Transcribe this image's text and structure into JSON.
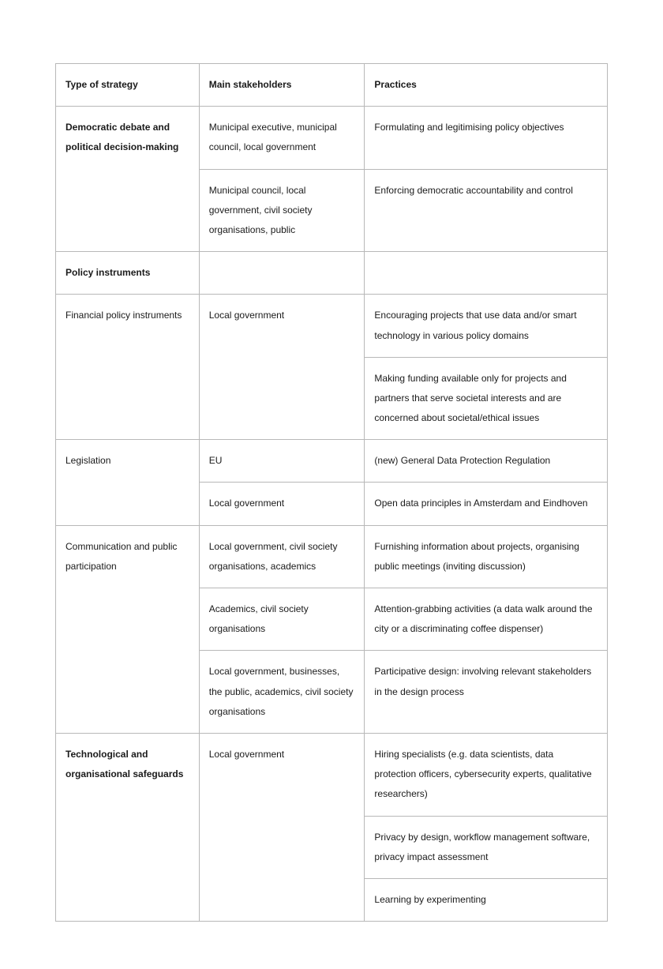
{
  "table": {
    "border_color": "#b8b8b8",
    "background_color": "#ffffff",
    "text_color": "#1a1a1a",
    "font_size_pt": 9,
    "line_height": 2.1,
    "column_widths_pct": [
      26,
      30,
      44
    ],
    "headers": {
      "col1": "Type of strategy",
      "col2": "Main stakeholders",
      "col3": "Practices"
    },
    "section1": {
      "title": "Democratic debate and political decision-making",
      "rows": [
        {
          "stakeholders": "Municipal executive, municipal council, local government",
          "practices": "Formulating and legitimising policy objectives"
        },
        {
          "stakeholders": "Municipal council, local government, civil society organisations, public",
          "practices": "Enforcing democratic accountability and control"
        }
      ]
    },
    "section2": {
      "title": "Policy instruments",
      "sub1": {
        "name": "Financial policy instruments",
        "stakeholders": "Local government",
        "practices": [
          "Encouraging projects that use data and/or smart technology in various policy domains",
          "Making funding available only for projects and partners that serve societal interests and are concerned about societal/ethical issues"
        ]
      },
      "sub2": {
        "name": "Legislation",
        "rows": [
          {
            "stakeholders": "EU",
            "practices": " (new) General Data Protection Regulation"
          },
          {
            "stakeholders": "Local government",
            "practices": "Open data principles in Amsterdam and Eindhoven"
          }
        ]
      },
      "sub3": {
        "name": "Communication and public participation",
        "rows": [
          {
            "stakeholders": "Local government, civil society organisations, academics",
            "practices": "Furnishing information about projects, organising public meetings (inviting discussion)"
          },
          {
            "stakeholders": "Academics, civil society organisations",
            "practices": "Attention-grabbing activities (a data walk around the city or a discriminating coffee dispenser)"
          },
          {
            "stakeholders": "Local government, businesses, the public, academics, civil society organisations",
            "practices": "Participative design: involving relevant stakeholders in the design process"
          }
        ]
      }
    },
    "section3": {
      "title": "Technological and organisational safeguards",
      "stakeholders": "Local government",
      "practices": [
        "Hiring specialists (e.g. data scientists, data protection officers, cybersecurity experts, qualitative researchers)",
        "Privacy by design, workflow management software, privacy impact assessment",
        "Learning by experimenting"
      ]
    }
  }
}
